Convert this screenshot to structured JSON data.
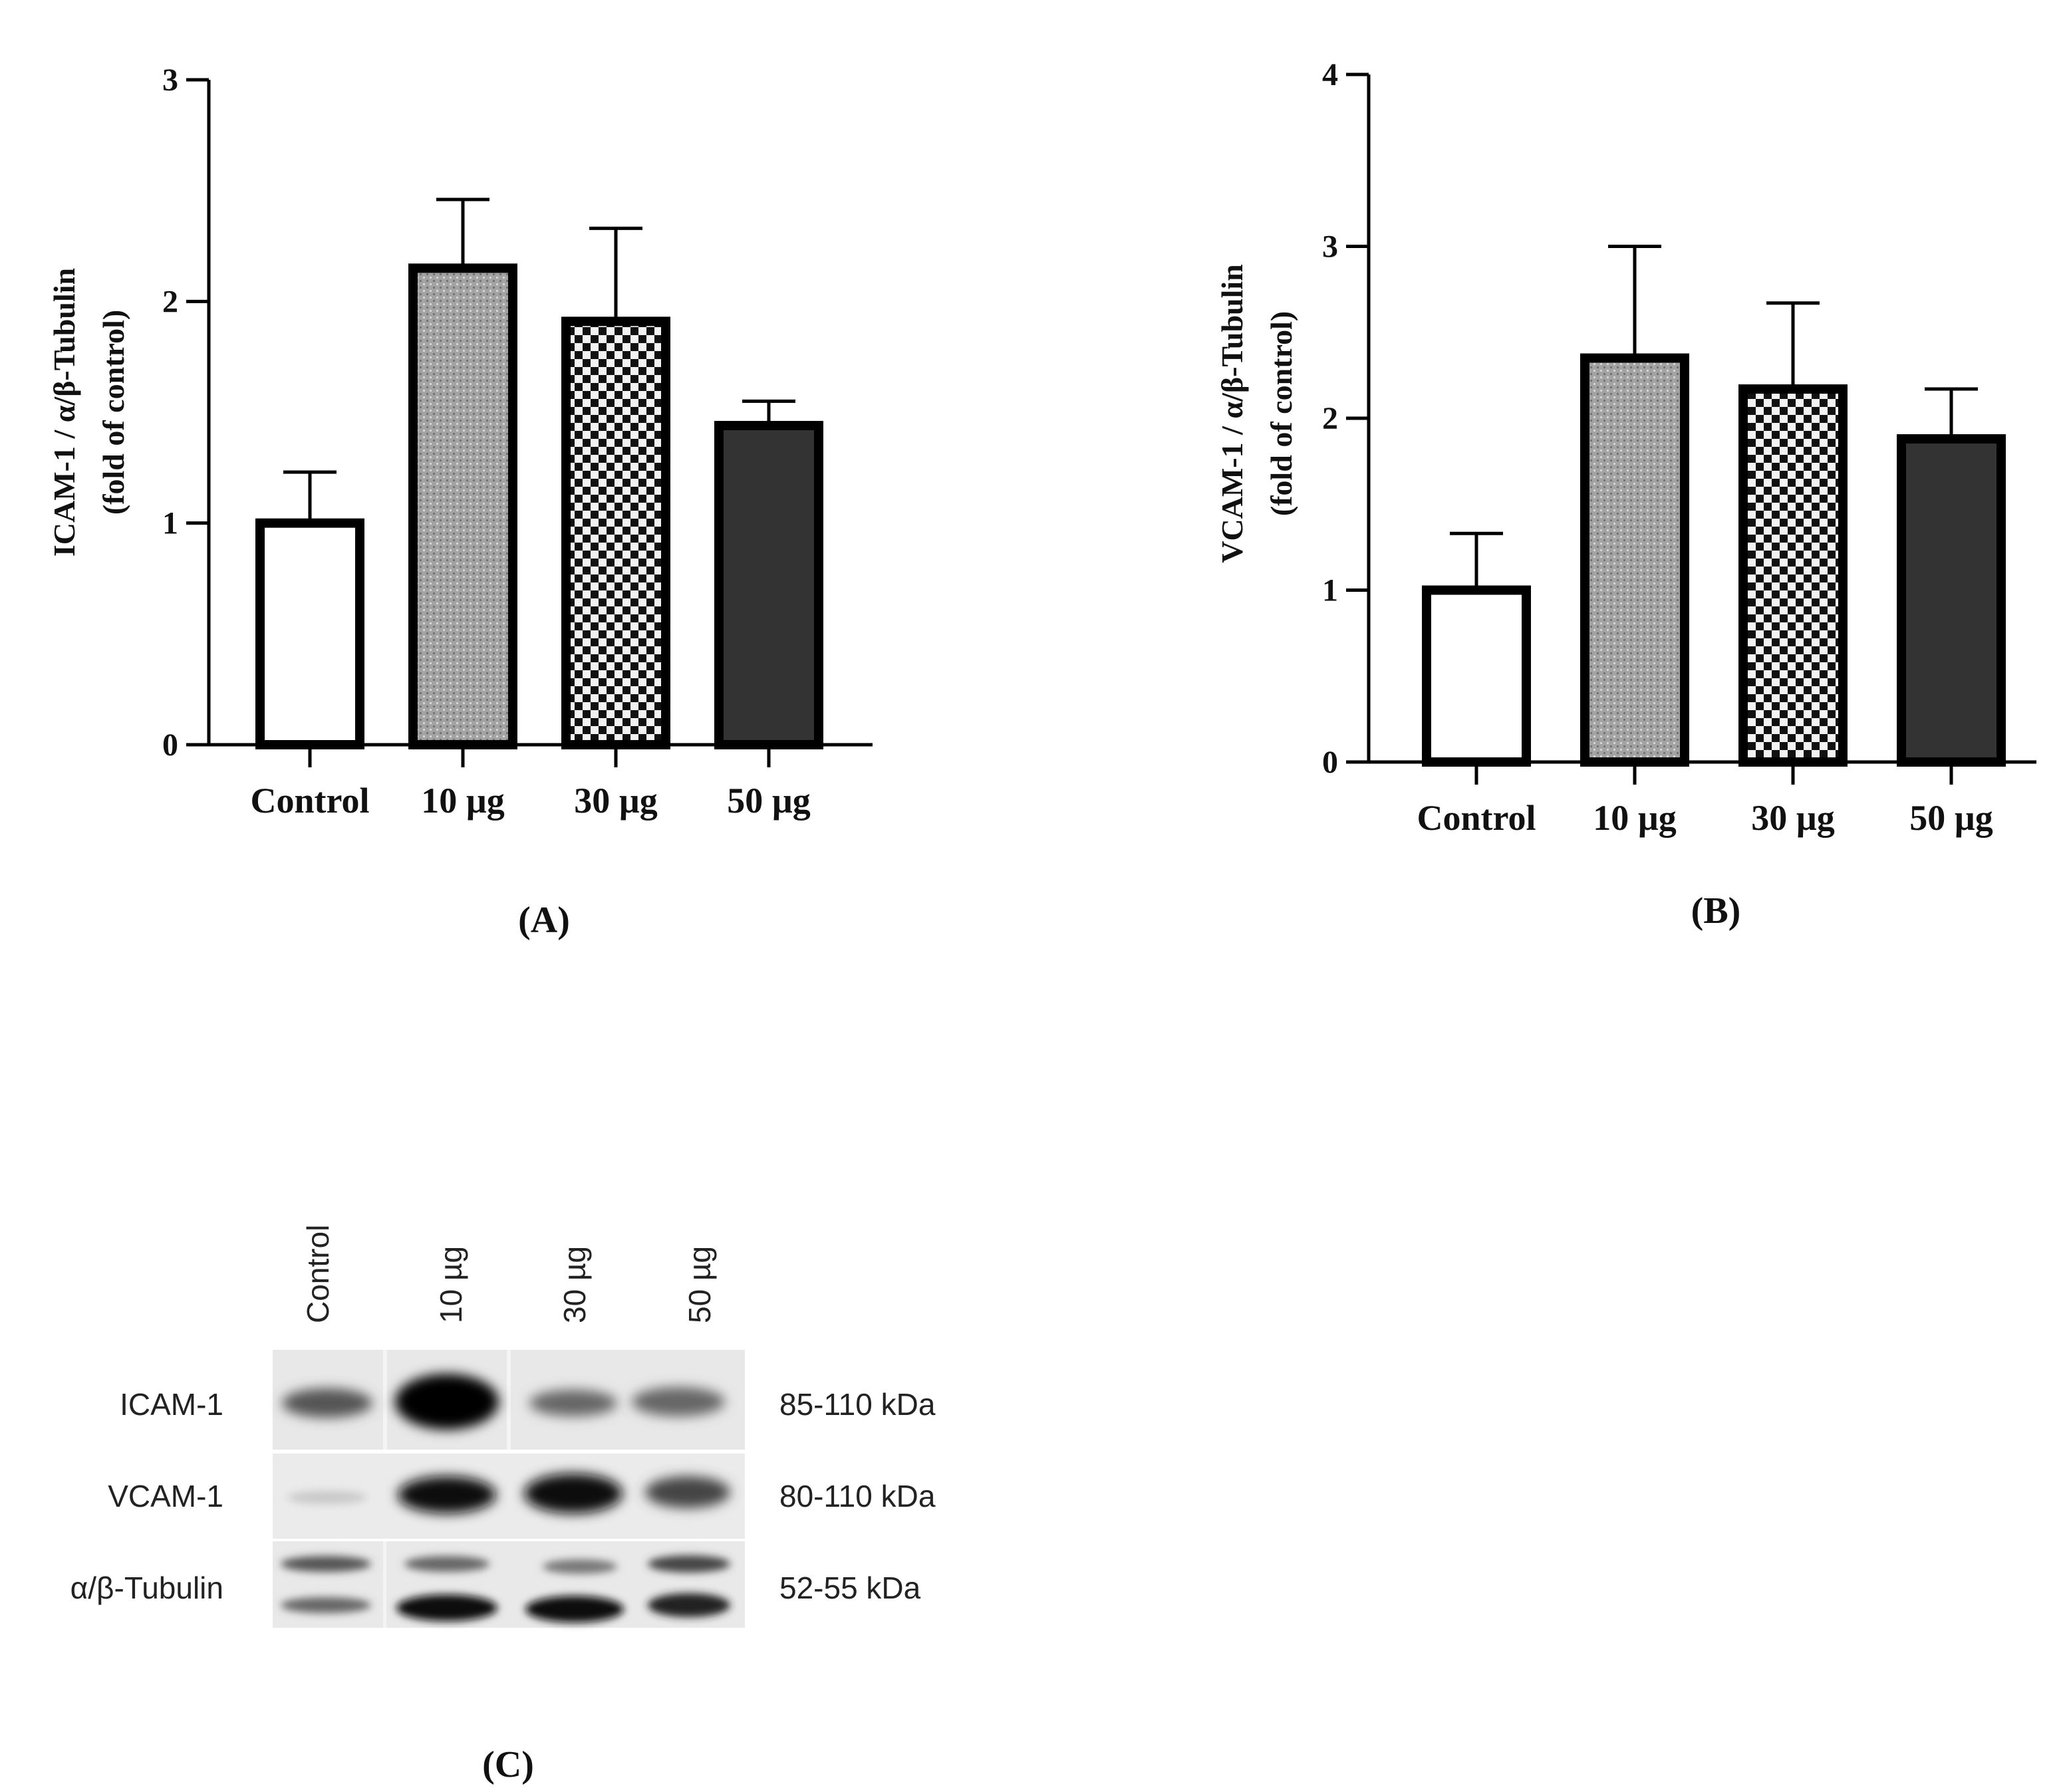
{
  "chart_data": [
    {
      "type": "bar",
      "panel_label": "(A)",
      "categories": [
        "Control",
        "10 µg",
        "30 µg",
        "50 µg"
      ],
      "values": [
        1.0,
        2.15,
        1.91,
        1.44
      ],
      "error": [
        0.23,
        0.31,
        0.42,
        0.11
      ],
      "ylabel_line1": "ICAM-1 / α/β-Tubulin",
      "ylabel_line2": "(fold of control)",
      "ylim": [
        0,
        3
      ],
      "yticks": [
        "0",
        "1",
        "2",
        "3"
      ]
    },
    {
      "type": "bar",
      "panel_label": "(B)",
      "categories": [
        "Control",
        "10 µg",
        "30 µg",
        "50 µg"
      ],
      "values": [
        1.0,
        2.35,
        2.17,
        1.88
      ],
      "error": [
        0.33,
        0.65,
        0.5,
        0.29
      ],
      "ylabel_line1": "VCAM-1 / α/β-Tubulin",
      "ylabel_line2": "(fold of control)",
      "ylim": [
        0,
        4
      ],
      "yticks": [
        "0",
        "1",
        "2",
        "3",
        "4"
      ]
    }
  ],
  "blot": {
    "panel_label": "(C)",
    "lanes": [
      "Control",
      "10 µg",
      "30 µg",
      "50 µg"
    ],
    "rows": [
      {
        "label": "ICAM-1",
        "size": "85-110 kDa"
      },
      {
        "label": "VCAM-1",
        "size": "80-110 kDa"
      },
      {
        "label": "α/β-Tubulin",
        "size": "52-55 kDa"
      }
    ]
  },
  "colors": {
    "bar_fills": [
      "#ffffff",
      "#9a9a9a",
      "checker",
      "#333333"
    ],
    "outline": "#000000"
  }
}
